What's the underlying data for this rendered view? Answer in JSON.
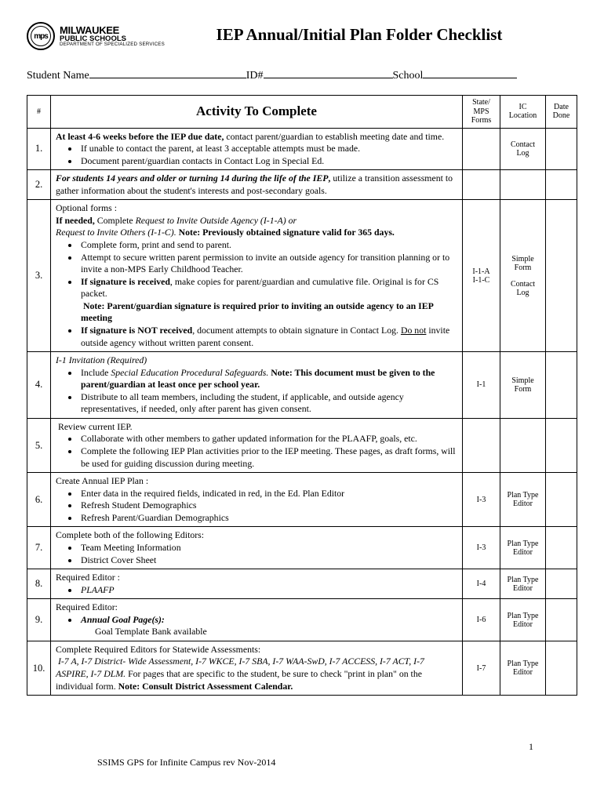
{
  "org": {
    "logo_text": "mps",
    "name": "MILWAUKEE",
    "sub": "PUBLIC SCHOOLS",
    "dept": "DEPARTMENT OF SPECIALIZED SERVICES"
  },
  "title": "IEP Annual/Initial Plan Folder Checklist",
  "student_row": {
    "name_label": "Student Name",
    "id_label": " ID#",
    "school_label": " School "
  },
  "headers": {
    "num": "#",
    "activity": "Activity To Complete",
    "forms": "State/\nMPS\nForms",
    "loc": "IC\nLocation",
    "done": "Date\nDone"
  },
  "rows": [
    {
      "num": "1.",
      "forms": "",
      "loc": "Contact\nLog",
      "html": "<span class='bold'>At least 4-6 weeks before the IEP due date,</span> contact parent/guardian to establish meeting date and time.<ul><li>If unable to contact the parent, at least 3 acceptable attempts must be made.</li><li>Document parent/guardian contacts in Contact Log in Special Ed.</li></ul>"
    },
    {
      "num": "2.",
      "forms": "",
      "loc": "",
      "html": "<span class='bold italic'>For students 14 years and older or turning 14 during the life of the IEP</span><span class='bold'>,</span> utilize a transition assessment to gather information about the student's interests and post-secondary goals."
    },
    {
      "num": "3.",
      "forms": "I-1-A\nI-1-C",
      "loc": "Simple\nForm\n\nContact\nLog",
      "html": "Optional forms :<br><span class='bold'>If needed,</span>  Complete <span class='italic'>Request to Invite Outside Agency (I-1-A) or</span><br><span class='italic'>Request to Invite Others (I-1-C).</span>  <span class='bold'>Note:  Previously obtained signature valid for 365 days.</span><ul><li>Complete form, print and send to parent.</li><li>Attempt to secure written parent permission to invite an outside agency for transition planning or to invite a non-MPS Early Childhood Teacher.</li><li><span class='bold'>If signature is received</span>, make copies for parent/guardian and cumulative file. Original is for CS packet.<br>&nbsp;<span class='bold'>Note:  Parent/guardian signature is required prior to inviting an  outside agency to an IEP meeting</span></li><li><span class='bold'>If signature is NOT received</span>, document attempts to obtain signature in Contact Log.  <span class='u'>Do not</span> invite outside agency without written parent consent.</li></ul>"
    },
    {
      "num": "4.",
      "forms": "I-1",
      "loc": "Simple\nForm",
      "html": "<span class='italic'>I-1 Invitation (Required)</span><ul><li>Include <span class='italic'>Special Education Procedural Safeguards.</span>  <span class='bold'>Note:  This document must be given to the parent/guardian at least once per school year.</span></li><li>Distribute to all team members, including the student, if applicable, and outside agency representatives, if needed, only after parent has given consent.</li></ul>"
    },
    {
      "num": "5.",
      "forms": "",
      "loc": "",
      "html": "&nbsp;Review current IEP.<ul><li>Collaborate with other members to gather updated information for the PLAAFP, goals, etc.</li><li>Complete the following IEP Plan activities prior to the IEP meeting. These pages, as draft forms, will be used for guiding discussion during meeting.</li></ul>"
    },
    {
      "num": "6.",
      "forms": "I-3",
      "loc": "Plan Type\nEditor",
      "html": "Create Annual IEP Plan :<ul><li>Enter data in the required fields, indicated in red, in the Ed. Plan Editor</li><li>Refresh Student Demographics</li><li>Refresh Parent/Guardian Demographics</li></ul>"
    },
    {
      "num": "7.",
      "forms": "I-3",
      "loc": "Plan Type\nEditor",
      "html": "Complete both of the following Editors:<ul><li>Team Meeting Information</li><li>District Cover Sheet</li></ul>"
    },
    {
      "num": "8.",
      "forms": "I-4",
      "loc": "Plan Type\nEditor",
      "html": "Required Editor :<ul><li><span class='italic'>PLAAFP</span></li></ul>"
    },
    {
      "num": "9.",
      "forms": "I-6",
      "loc": "Plan Type\nEditor",
      "html": "Required Editor:<ul><li><span class='bold italic'>Annual Goal Page(s):</span><div style='margin-left:18px;'>Goal Template Bank available</div></li></ul>"
    },
    {
      "num": "10.",
      "forms": "I-7",
      "loc": "Plan Type\nEditor",
      "html": "Complete Required Editors for Statewide Assessments:<br>&nbsp;<span class='italic'>I-7 A, I-7 District- Wide Assessment, I-7 WKCE, I-7 SBA, I-7 WAA-SwD, I-7 ACCESS, I-7 ACT, I-7 ASPIRE, I-7 DLM.</span> For pages that are specific to the student, be sure to check \"print in plan\" on the individual form.  <span class='bold'>Note:  Consult District Assessment Calendar.</span>"
    }
  ],
  "page_num": "1",
  "footer": "SSIMS GPS for Infinite Campus rev Nov-2014"
}
